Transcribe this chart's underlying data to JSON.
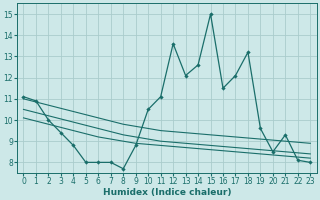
{
  "xlabel": "Humidex (Indice chaleur)",
  "background_color": "#cde8e8",
  "grid_color": "#aacccc",
  "line_color": "#1a6e6a",
  "xlim": [
    -0.5,
    23.5
  ],
  "ylim": [
    7.5,
    15.5
  ],
  "xticks": [
    0,
    1,
    2,
    3,
    4,
    5,
    6,
    7,
    8,
    9,
    10,
    11,
    12,
    13,
    14,
    15,
    16,
    17,
    18,
    19,
    20,
    21,
    22,
    23
  ],
  "yticks": [
    8,
    9,
    10,
    11,
    12,
    13,
    14,
    15
  ],
  "series_main": [
    11.1,
    10.9,
    10.0,
    9.4,
    8.8,
    8.0,
    8.0,
    8.0,
    7.7,
    8.8,
    10.5,
    11.1,
    13.6,
    12.1,
    12.6,
    15.0,
    11.5,
    12.1,
    13.2,
    9.6,
    8.5,
    9.3,
    8.1,
    8.0
  ],
  "series_flat": [
    [
      11.0,
      10.85,
      10.7,
      10.55,
      10.4,
      10.25,
      10.1,
      9.95,
      9.8,
      9.7,
      9.6,
      9.5,
      9.45,
      9.4,
      9.35,
      9.3,
      9.25,
      9.2,
      9.15,
      9.1,
      9.05,
      9.0,
      8.95,
      8.9
    ],
    [
      10.5,
      10.35,
      10.2,
      10.05,
      9.9,
      9.75,
      9.6,
      9.45,
      9.3,
      9.2,
      9.1,
      9.0,
      8.95,
      8.9,
      8.85,
      8.8,
      8.75,
      8.7,
      8.65,
      8.6,
      8.55,
      8.5,
      8.45,
      8.4
    ],
    [
      10.1,
      9.95,
      9.8,
      9.65,
      9.5,
      9.35,
      9.2,
      9.1,
      9.0,
      8.9,
      8.85,
      8.8,
      8.75,
      8.7,
      8.65,
      8.6,
      8.55,
      8.5,
      8.45,
      8.4,
      8.35,
      8.3,
      8.25,
      8.2
    ]
  ]
}
